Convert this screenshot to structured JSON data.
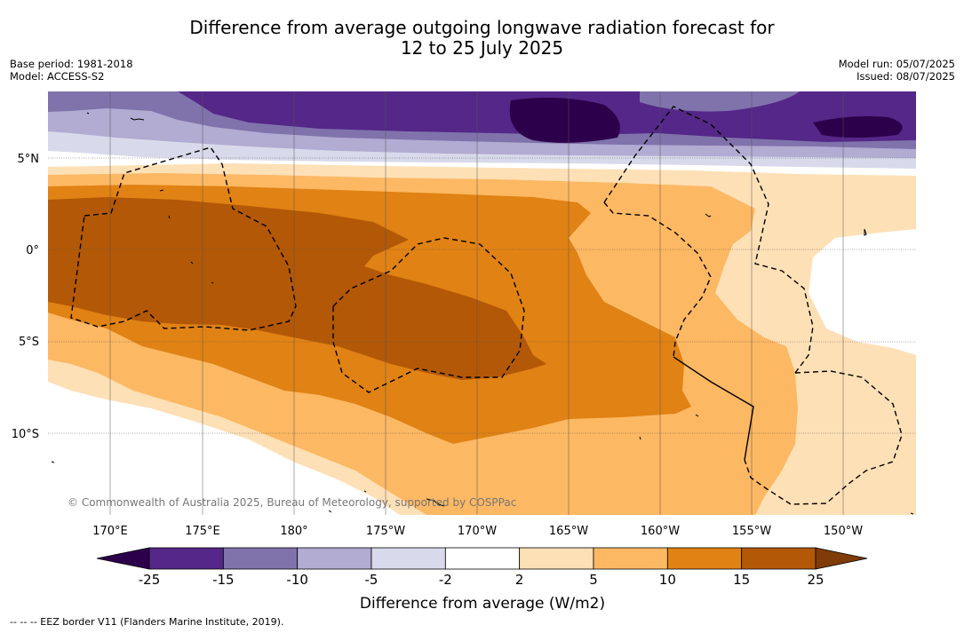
{
  "title": {
    "line1": "Difference from average outgoing longwave radiation forecast for",
    "line2": "12 to 25 July 2025"
  },
  "meta": {
    "base_period": "Base period: 1981-2018",
    "model": "Model: ACCESS-S2",
    "model_run": "Model run: 05/07/2025",
    "issued": "Issued: 08/07/2025"
  },
  "map": {
    "lat_labels": [
      "5°N",
      "0°",
      "5°S",
      "10°S"
    ],
    "lon_labels": [
      "170°E",
      "175°E",
      "180°",
      "175°W",
      "170°W",
      "165°W",
      "160°W",
      "155°W",
      "150°W"
    ],
    "copyright": "© Commonwealth of Australia 2025, Bureau of Meteorology, supported by COSPPac"
  },
  "colorbar": {
    "ticks": [
      "-25",
      "-15",
      "-10",
      "-5",
      "-2",
      "2",
      "5",
      "10",
      "15",
      "25"
    ],
    "colors": {
      "below_-25": "#2d004b",
      "-25_-15": "#542788",
      "-15_-10": "#8073ac",
      "-10_-5": "#b2abd2",
      "-5_-2": "#d8daeb",
      "-2_2": "#ffffff",
      "2_5": "#fee0b6",
      "5_10": "#fdb863",
      "10_15": "#e08214",
      "15_25": "#b35806",
      "above_25": "#7f3b08"
    },
    "label": "Difference from average (W/m2)"
  },
  "footer": "--  --  -- EEZ border V11 (Flanders Marine Institute, 2019)."
}
